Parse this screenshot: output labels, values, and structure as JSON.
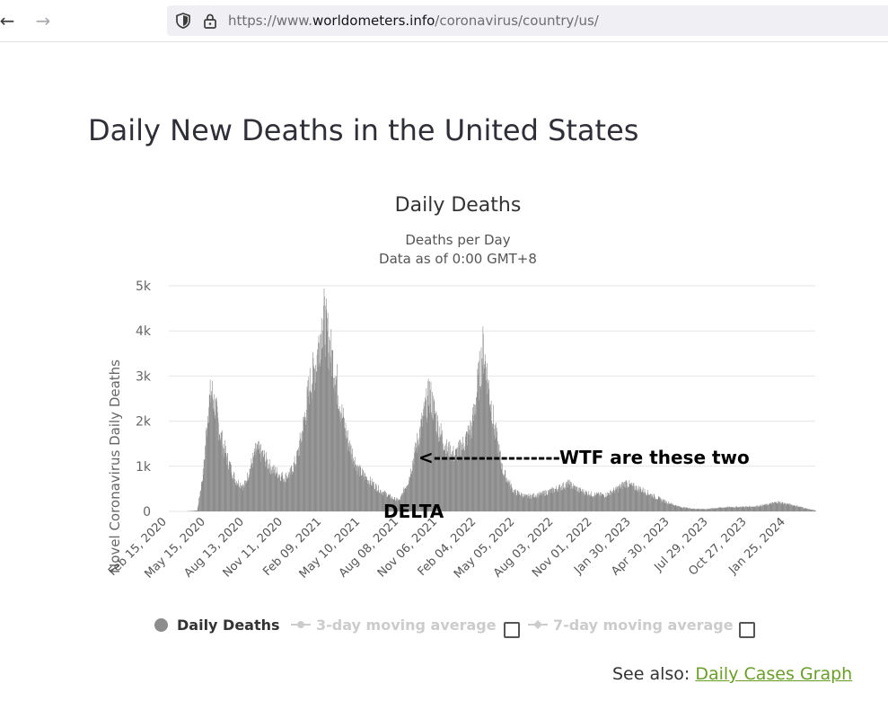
{
  "browser": {
    "url_prefix": "https://www.",
    "url_domain": "worldometers.info",
    "url_path": "/coronavirus/country/us/"
  },
  "page": {
    "title": "Daily New Deaths in the United States",
    "see_also_label": "See also:",
    "see_also_link": "Daily Cases Graph"
  },
  "chart_data": {
    "type": "bar",
    "title": "Daily Deaths",
    "subtitle_line1": "Deaths per Day",
    "subtitle_line2": "Data as of 0:00 GMT+8",
    "ylabel": "Novel Coronavirus Daily Deaths",
    "ylim": [
      0,
      5000
    ],
    "y_ticks": [
      {
        "value": 0,
        "label": "0"
      },
      {
        "value": 1000,
        "label": "1k"
      },
      {
        "value": 2000,
        "label": "2k"
      },
      {
        "value": 3000,
        "label": "3k"
      },
      {
        "value": 4000,
        "label": "4k"
      },
      {
        "value": 5000,
        "label": "5k"
      }
    ],
    "x_range": [
      "2020-02-15",
      "2024-04-10"
    ],
    "x_tick_labels": [
      "Feb 15, 2020",
      "May 15, 2020",
      "Aug 13, 2020",
      "Nov 11, 2020",
      "Feb 09, 2021",
      "May 10, 2021",
      "Aug 08, 2021",
      "Nov 06, 2021",
      "Feb 04, 2022",
      "May 05, 2022",
      "Aug 03, 2022",
      "Nov 01, 2022",
      "Jan 30, 2023",
      "Apr 30, 2023",
      "Jul 29, 2023",
      "Oct 27, 2023",
      "Jan 25, 2024"
    ],
    "bar_color": "#8c8c8c",
    "series": [
      {
        "name": "Daily Deaths",
        "approx_profile": [
          [
            "2020-02-15",
            0
          ],
          [
            "2020-03-15",
            20
          ],
          [
            "2020-03-30",
            900
          ],
          [
            "2020-04-10",
            2300
          ],
          [
            "2020-04-18",
            2700
          ],
          [
            "2020-04-28",
            2300
          ],
          [
            "2020-05-10",
            1700
          ],
          [
            "2020-05-25",
            1200
          ],
          [
            "2020-06-15",
            700
          ],
          [
            "2020-07-05",
            550
          ],
          [
            "2020-07-25",
            1100
          ],
          [
            "2020-08-05",
            1400
          ],
          [
            "2020-08-20",
            1250
          ],
          [
            "2020-09-10",
            950
          ],
          [
            "2020-10-10",
            750
          ],
          [
            "2020-10-25",
            850
          ],
          [
            "2020-11-10",
            1200
          ],
          [
            "2020-11-25",
            1900
          ],
          [
            "2020-12-10",
            2800
          ],
          [
            "2020-12-25",
            3300
          ],
          [
            "2021-01-12",
            4400
          ],
          [
            "2021-01-25",
            3800
          ],
          [
            "2021-02-10",
            3100
          ],
          [
            "2021-02-25",
            2200
          ],
          [
            "2021-03-15",
            1500
          ],
          [
            "2021-04-05",
            950
          ],
          [
            "2021-05-01",
            700
          ],
          [
            "2021-06-01",
            450
          ],
          [
            "2021-07-01",
            280
          ],
          [
            "2021-07-15",
            250
          ],
          [
            "2021-08-05",
            700
          ],
          [
            "2021-08-25",
            1500
          ],
          [
            "2021-09-15",
            2300
          ],
          [
            "2021-09-25",
            2650
          ],
          [
            "2021-10-15",
            1900
          ],
          [
            "2021-11-05",
            1400
          ],
          [
            "2021-11-25",
            1250
          ],
          [
            "2021-12-15",
            1500
          ],
          [
            "2022-01-05",
            1900
          ],
          [
            "2022-01-20",
            2900
          ],
          [
            "2022-02-01",
            3650
          ],
          [
            "2022-02-15",
            2700
          ],
          [
            "2022-03-01",
            1800
          ],
          [
            "2022-03-20",
            900
          ],
          [
            "2022-04-15",
            450
          ],
          [
            "2022-05-15",
            330
          ],
          [
            "2022-06-15",
            370
          ],
          [
            "2022-07-15",
            460
          ],
          [
            "2022-08-10",
            560
          ],
          [
            "2022-08-25",
            620
          ],
          [
            "2022-09-20",
            470
          ],
          [
            "2022-10-20",
            380
          ],
          [
            "2022-11-20",
            360
          ],
          [
            "2022-12-20",
            500
          ],
          [
            "2023-01-10",
            640
          ],
          [
            "2023-01-25",
            560
          ],
          [
            "2023-02-20",
            470
          ],
          [
            "2023-03-20",
            330
          ],
          [
            "2023-04-20",
            200
          ],
          [
            "2023-05-20",
            100
          ],
          [
            "2023-06-20",
            60
          ],
          [
            "2023-07-20",
            50
          ],
          [
            "2023-08-20",
            80
          ],
          [
            "2023-09-15",
            95
          ],
          [
            "2023-10-15",
            100
          ],
          [
            "2023-11-15",
            110
          ],
          [
            "2023-12-15",
            150
          ],
          [
            "2024-01-10",
            210
          ],
          [
            "2024-01-25",
            180
          ],
          [
            "2024-02-25",
            120
          ],
          [
            "2024-03-25",
            50
          ],
          [
            "2024-04-10",
            20
          ]
        ]
      }
    ],
    "legend": [
      {
        "label": "Daily Deaths",
        "active": true,
        "color": "#8c8c8c"
      },
      {
        "label": "3-day moving average",
        "active": false,
        "color": "#cccccc"
      },
      {
        "label": "7-day moving average",
        "active": false,
        "color": "#cccccc"
      }
    ],
    "legend_placement": "bottom-center",
    "annotations": [
      {
        "text": "<-----------------WTF are these two"
      },
      {
        "text": "DELTA"
      }
    ]
  }
}
